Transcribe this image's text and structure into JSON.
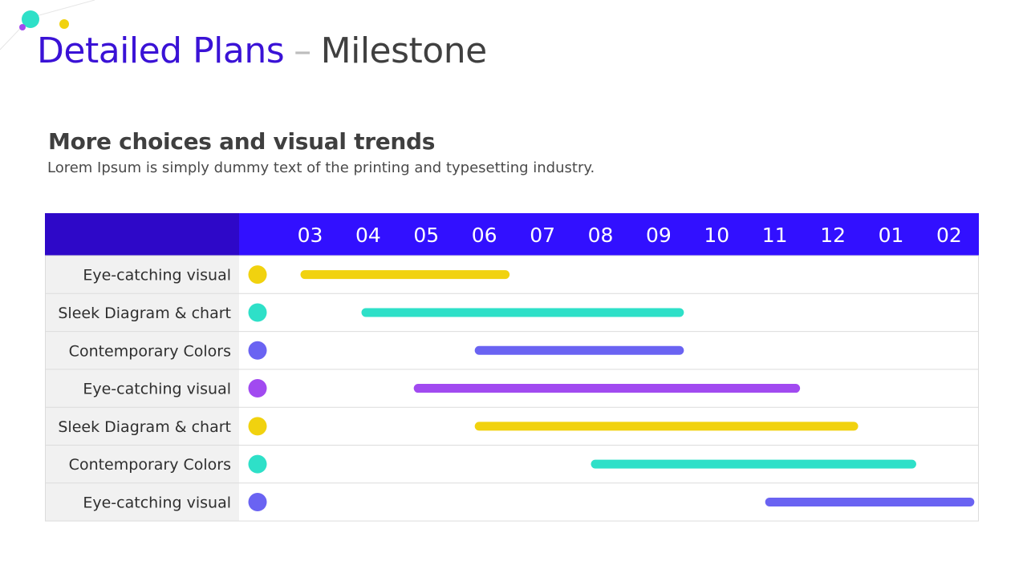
{
  "page": {
    "title_main": "Detailed Plans",
    "title_sep": "–",
    "title_sub": "Milestone",
    "heading": "More choices and visual trends",
    "description": "Lorem Ipsum is simply dummy text of the printing and typesetting industry."
  },
  "colors": {
    "header_dark": "#2e08c8",
    "header_main": "#3210ff",
    "label_bg": "#f1f1f1",
    "grid_line": "#dcdcdc",
    "yellow": "#f1d20f",
    "teal": "#2ee0c8",
    "blue_violet": "#6a63f2",
    "purple": "#a14af0"
  },
  "chart_data": {
    "type": "gantt",
    "months": [
      "03",
      "04",
      "05",
      "06",
      "07",
      "08",
      "09",
      "10",
      "11",
      "12",
      "01",
      "02"
    ],
    "tasks": [
      {
        "label": "Eye-catching visual",
        "start": 0.0,
        "end": 3.6,
        "color": "#f1d20f"
      },
      {
        "label": "Sleek Diagram & chart",
        "start": 1.05,
        "end": 6.6,
        "color": "#2ee0c8"
      },
      {
        "label": "Contemporary Colors",
        "start": 3.0,
        "end": 6.6,
        "color": "#6a63f2"
      },
      {
        "label": "Eye-catching visual",
        "start": 1.95,
        "end": 8.6,
        "color": "#a14af0"
      },
      {
        "label": "Sleek Diagram & chart",
        "start": 3.0,
        "end": 9.6,
        "color": "#f1d20f"
      },
      {
        "label": "Contemporary Colors",
        "start": 5.0,
        "end": 10.6,
        "color": "#2ee0c8"
      },
      {
        "label": "Eye-catching visual",
        "start": 8.0,
        "end": 11.6,
        "color": "#6a63f2"
      }
    ]
  }
}
